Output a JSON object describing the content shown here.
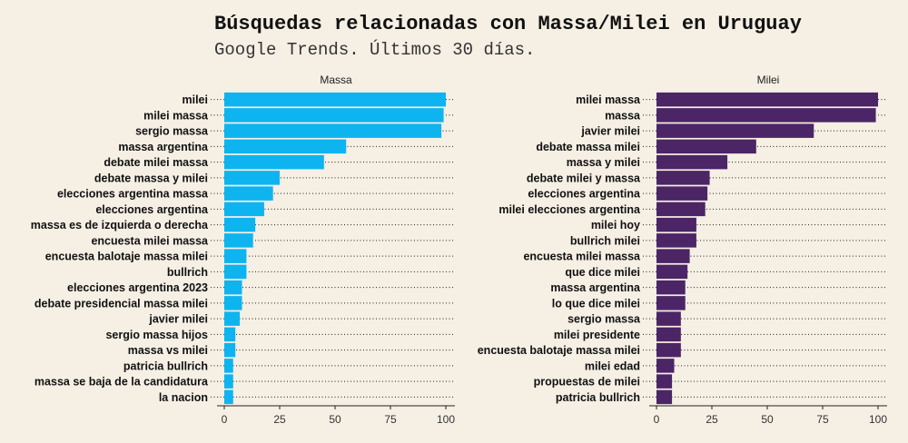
{
  "title": "Búsquedas relacionadas con Massa/Milei en Uruguay",
  "subtitle": "Google Trends. Últimos 30 días.",
  "chart_data": [
    {
      "type": "bar",
      "orientation": "horizontal",
      "title": "Massa",
      "color": "#0db4f0",
      "xlim": [
        0,
        100
      ],
      "xticks": [
        0,
        25,
        50,
        75,
        100
      ],
      "grid": "dotted horizontal guide lines per category",
      "categories": [
        "milei",
        "milei massa",
        "sergio massa",
        "massa argentina",
        "debate milei massa",
        "debate massa y milei",
        "elecciones argentina massa",
        "elecciones argentina",
        "massa es de izquierda o derecha",
        "encuesta milei massa",
        "encuesta balotaje massa milei",
        "bullrich",
        "elecciones argentina 2023",
        "debate presidencial massa milei",
        "javier milei",
        "sergio massa hijos",
        "massa vs milei",
        "patricia bullrich",
        "massa se baja de la candidatura",
        "la nacion"
      ],
      "values": [
        100,
        99,
        98,
        55,
        45,
        25,
        22,
        18,
        14,
        13,
        10,
        10,
        8,
        8,
        7,
        5,
        5,
        4,
        4,
        4
      ]
    },
    {
      "type": "bar",
      "orientation": "horizontal",
      "title": "Milei",
      "color": "#4b2566",
      "xlim": [
        0,
        100
      ],
      "xticks": [
        0,
        25,
        50,
        75,
        100
      ],
      "grid": "dotted horizontal guide lines per category",
      "categories": [
        "milei massa",
        "massa",
        "javier milei",
        "debate massa milei",
        "massa y milei",
        "debate milei y massa",
        "elecciones argentina",
        "milei elecciones argentina",
        "milei hoy",
        "bullrich milei",
        "encuesta milei massa",
        "que dice milei",
        "massa argentina",
        "lo que dice milei",
        "sergio massa",
        "milei presidente",
        "encuesta balotaje massa milei",
        "milei edad",
        "propuestas de milei",
        "patricia bullrich"
      ],
      "values": [
        100,
        99,
        71,
        45,
        32,
        24,
        23,
        22,
        18,
        18,
        15,
        14,
        13,
        13,
        11,
        11,
        11,
        8,
        7,
        7
      ]
    }
  ]
}
